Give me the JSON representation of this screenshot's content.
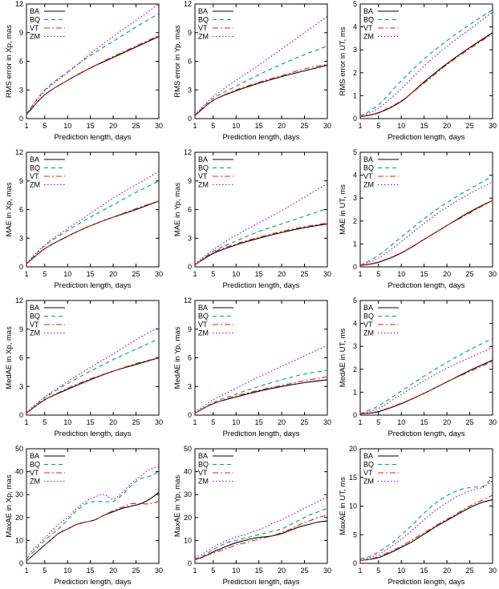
{
  "chart_data": [
    {
      "type": "line",
      "xlabel": "Prediction length, days",
      "ylabel": "RMS error in Xp, mas",
      "xlim": [
        1,
        30
      ],
      "xticks": [
        1,
        5,
        10,
        15,
        20,
        25,
        30
      ],
      "ylim": [
        0,
        12
      ],
      "yticks": [
        0,
        3,
        6,
        9,
        12
      ],
      "x": [
        1,
        5,
        10,
        15,
        20,
        25,
        30
      ],
      "legend_position": "top-left",
      "series": [
        {
          "name": "BA",
          "values": [
            0.4,
            2.5,
            4.0,
            5.3,
            6.4,
            7.5,
            8.6
          ]
        },
        {
          "name": "BQ",
          "values": [
            0.5,
            3.0,
            4.9,
            6.6,
            8.1,
            9.6,
            11.0
          ]
        },
        {
          "name": "VT",
          "values": [
            0.4,
            2.5,
            4.0,
            5.3,
            6.5,
            7.6,
            8.7
          ]
        },
        {
          "name": "ZM",
          "values": [
            0.5,
            2.9,
            4.8,
            6.8,
            8.6,
            10.3,
            12.0
          ]
        }
      ]
    },
    {
      "type": "line",
      "xlabel": "Prediction length, days",
      "ylabel": "RMS error in Yp, mas",
      "xlim": [
        1,
        30
      ],
      "xticks": [
        1,
        5,
        10,
        15,
        20,
        25,
        30
      ],
      "ylim": [
        0,
        12
      ],
      "yticks": [
        0,
        3,
        6,
        9,
        12
      ],
      "x": [
        1,
        5,
        10,
        15,
        20,
        25,
        30
      ],
      "legend_position": "top-left",
      "series": [
        {
          "name": "BA",
          "values": [
            0.3,
            1.9,
            2.9,
            3.7,
            4.4,
            5.0,
            5.6
          ]
        },
        {
          "name": "BQ",
          "values": [
            0.4,
            2.1,
            3.4,
            4.6,
            5.7,
            6.7,
            7.6
          ]
        },
        {
          "name": "VT",
          "values": [
            0.3,
            1.9,
            3.0,
            3.8,
            4.5,
            5.2,
            5.7
          ]
        },
        {
          "name": "ZM",
          "values": [
            0.4,
            2.3,
            4.0,
            5.6,
            7.3,
            9.0,
            10.7
          ]
        }
      ]
    },
    {
      "type": "line",
      "xlabel": "Prediction length, days",
      "ylabel": "RMS error in UT, ms",
      "xlim": [
        1,
        30
      ],
      "xticks": [
        1,
        5,
        10,
        15,
        20,
        25,
        30
      ],
      "ylim": [
        0,
        5
      ],
      "yticks": [
        0,
        1,
        2,
        3,
        4,
        5
      ],
      "x": [
        1,
        5,
        10,
        15,
        20,
        25,
        30
      ],
      "legend_position": "top-left",
      "series": [
        {
          "name": "BA",
          "values": [
            0.08,
            0.25,
            0.75,
            1.6,
            2.4,
            3.1,
            3.75
          ]
        },
        {
          "name": "BQ",
          "values": [
            0.1,
            0.6,
            1.65,
            2.6,
            3.4,
            4.1,
            4.75
          ]
        },
        {
          "name": "VT",
          "values": [
            0.08,
            0.27,
            0.78,
            1.55,
            2.35,
            3.05,
            3.7
          ]
        },
        {
          "name": "ZM",
          "values": [
            0.1,
            0.45,
            1.3,
            2.3,
            3.15,
            3.9,
            4.65
          ]
        }
      ]
    },
    {
      "type": "line",
      "xlabel": "Prediction length, days",
      "ylabel": "MAE in Xp, mas",
      "xlim": [
        1,
        30
      ],
      "xticks": [
        1,
        5,
        10,
        15,
        20,
        25,
        30
      ],
      "ylim": [
        0,
        12
      ],
      "yticks": [
        0,
        3,
        6,
        9,
        12
      ],
      "x": [
        1,
        5,
        10,
        15,
        20,
        25,
        30
      ],
      "legend_position": "top-left",
      "series": [
        {
          "name": "BA",
          "values": [
            0.3,
            1.9,
            3.2,
            4.3,
            5.2,
            6.0,
            6.9
          ]
        },
        {
          "name": "BQ",
          "values": [
            0.3,
            2.2,
            3.8,
            5.2,
            6.5,
            7.8,
            9.0
          ]
        },
        {
          "name": "VT",
          "values": [
            0.3,
            1.9,
            3.2,
            4.3,
            5.2,
            6.1,
            6.9
          ]
        },
        {
          "name": "ZM",
          "values": [
            0.4,
            2.3,
            4.0,
            5.6,
            7.2,
            8.6,
            10.0
          ]
        }
      ]
    },
    {
      "type": "line",
      "xlabel": "Prediction length, days",
      "ylabel": "MAE in Yp, mas",
      "xlim": [
        1,
        30
      ],
      "xticks": [
        1,
        5,
        10,
        15,
        20,
        25,
        30
      ],
      "ylim": [
        0,
        12
      ],
      "yticks": [
        0,
        3,
        6,
        9,
        12
      ],
      "x": [
        1,
        5,
        10,
        15,
        20,
        25,
        30
      ],
      "legend_position": "top-left",
      "series": [
        {
          "name": "BA",
          "values": [
            0.2,
            1.4,
            2.3,
            3.0,
            3.6,
            4.1,
            4.5
          ]
        },
        {
          "name": "BQ",
          "values": [
            0.2,
            1.6,
            2.7,
            3.7,
            4.5,
            5.3,
            6.1
          ]
        },
        {
          "name": "VT",
          "values": [
            0.2,
            1.5,
            2.4,
            3.1,
            3.7,
            4.2,
            4.6
          ]
        },
        {
          "name": "ZM",
          "values": [
            0.3,
            1.8,
            3.3,
            4.6,
            5.9,
            7.3,
            8.7
          ]
        }
      ]
    },
    {
      "type": "line",
      "xlabel": "Prediction length, days",
      "ylabel": "MAE in UT, ms",
      "xlim": [
        1,
        30
      ],
      "xticks": [
        1,
        5,
        10,
        15,
        20,
        25,
        30
      ],
      "ylim": [
        0,
        5
      ],
      "yticks": [
        0,
        1,
        2,
        3,
        4,
        5
      ],
      "x": [
        1,
        5,
        10,
        15,
        20,
        25,
        30
      ],
      "legend_position": "top-left",
      "series": [
        {
          "name": "BA",
          "values": [
            0.06,
            0.2,
            0.6,
            1.2,
            1.8,
            2.4,
            2.9
          ]
        },
        {
          "name": "BQ",
          "values": [
            0.07,
            0.5,
            1.3,
            2.1,
            2.8,
            3.4,
            3.95
          ]
        },
        {
          "name": "VT",
          "values": [
            0.06,
            0.22,
            0.62,
            1.2,
            1.8,
            2.35,
            2.9
          ]
        },
        {
          "name": "ZM",
          "values": [
            0.08,
            0.38,
            1.1,
            1.9,
            2.6,
            3.2,
            3.7
          ]
        }
      ]
    },
    {
      "type": "line",
      "xlabel": "Prediction length, days",
      "ylabel": "MedAE in Xp, mas",
      "xlim": [
        1,
        30
      ],
      "xticks": [
        1,
        5,
        10,
        15,
        20,
        25,
        30
      ],
      "ylim": [
        0,
        12
      ],
      "yticks": [
        0,
        3,
        6,
        9,
        12
      ],
      "x": [
        1,
        5,
        10,
        15,
        20,
        25,
        30
      ],
      "legend_position": "top-left",
      "series": [
        {
          "name": "BA",
          "values": [
            0.2,
            1.6,
            2.7,
            3.7,
            4.6,
            5.3,
            6.0
          ]
        },
        {
          "name": "BQ",
          "values": [
            0.2,
            1.8,
            3.3,
            4.6,
            5.8,
            6.9,
            8.0
          ]
        },
        {
          "name": "VT",
          "values": [
            0.2,
            1.6,
            2.8,
            3.8,
            4.6,
            5.4,
            6.0
          ]
        },
        {
          "name": "ZM",
          "values": [
            0.3,
            1.9,
            3.5,
            5.0,
            6.4,
            7.9,
            9.2
          ]
        }
      ]
    },
    {
      "type": "line",
      "xlabel": "Prediction length, days",
      "ylabel": "MedAE in Yp, mas",
      "xlim": [
        1,
        30
      ],
      "xticks": [
        1,
        5,
        10,
        15,
        20,
        25,
        30
      ],
      "ylim": [
        0,
        12
      ],
      "yticks": [
        0,
        3,
        6,
        9,
        12
      ],
      "x": [
        1,
        5,
        10,
        15,
        20,
        25,
        30
      ],
      "legend_position": "top-left",
      "series": [
        {
          "name": "BA",
          "values": [
            0.2,
            1.2,
            1.9,
            2.5,
            3.0,
            3.4,
            3.7
          ]
        },
        {
          "name": "BQ",
          "values": [
            0.2,
            1.3,
            2.2,
            3.0,
            3.7,
            4.3,
            4.7
          ]
        },
        {
          "name": "VT",
          "values": [
            0.2,
            1.2,
            2.0,
            2.6,
            3.1,
            3.6,
            4.0
          ]
        },
        {
          "name": "ZM",
          "values": [
            0.3,
            1.6,
            2.8,
            4.0,
            5.1,
            6.2,
            7.3
          ]
        }
      ]
    },
    {
      "type": "line",
      "xlabel": "Prediction length, days",
      "ylabel": "MedAE in UT, ms",
      "xlim": [
        1,
        30
      ],
      "xticks": [
        1,
        5,
        10,
        15,
        20,
        25,
        30
      ],
      "ylim": [
        0,
        5
      ],
      "yticks": [
        0,
        1,
        2,
        3,
        4,
        5
      ],
      "x": [
        1,
        5,
        10,
        15,
        20,
        25,
        30
      ],
      "legend_position": "top-left",
      "series": [
        {
          "name": "BA",
          "values": [
            0.05,
            0.15,
            0.5,
            0.95,
            1.45,
            1.95,
            2.4
          ]
        },
        {
          "name": "BQ",
          "values": [
            0.06,
            0.4,
            1.05,
            1.7,
            2.3,
            2.85,
            3.35
          ]
        },
        {
          "name": "VT",
          "values": [
            0.05,
            0.17,
            0.52,
            0.95,
            1.45,
            1.9,
            2.35
          ]
        },
        {
          "name": "ZM",
          "values": [
            0.06,
            0.3,
            0.9,
            1.5,
            2.05,
            2.5,
            2.95
          ]
        }
      ]
    },
    {
      "type": "line",
      "xlabel": "Prediction length, days",
      "ylabel": "MaxAE in Xp, mas",
      "xlim": [
        1,
        30
      ],
      "xticks": [
        1,
        5,
        10,
        15,
        20,
        25,
        30
      ],
      "ylim": [
        0,
        50
      ],
      "yticks": [
        0,
        10,
        20,
        30,
        40,
        50
      ],
      "x": [
        1,
        3,
        5,
        8,
        10,
        12,
        14,
        16,
        18,
        20,
        22,
        24,
        26,
        28,
        30
      ],
      "legend_position": "top-left",
      "series": [
        {
          "name": "BA",
          "values": [
            1,
            4.5,
            8,
            13,
            15,
            17,
            18,
            19,
            21,
            22.5,
            24,
            25,
            26,
            28,
            31
          ]
        },
        {
          "name": "BQ",
          "values": [
            2,
            6,
            10,
            15,
            19,
            23,
            26,
            27,
            27,
            27,
            30,
            34,
            37,
            38,
            40
          ]
        },
        {
          "name": "VT",
          "values": [
            1,
            4.5,
            8,
            13,
            15,
            17,
            18,
            19,
            21,
            23,
            24.5,
            26,
            26,
            26,
            27
          ]
        },
        {
          "name": "ZM",
          "values": [
            3,
            7,
            11,
            17,
            20,
            24,
            27,
            29,
            30,
            28,
            31,
            35,
            38,
            41,
            42
          ]
        }
      ]
    },
    {
      "type": "line",
      "xlabel": "Prediction length, days",
      "ylabel": "MaxAE in Yp, mas",
      "xlim": [
        1,
        30
      ],
      "xticks": [
        1,
        5,
        10,
        15,
        20,
        25,
        30
      ],
      "ylim": [
        0,
        50
      ],
      "yticks": [
        0,
        10,
        20,
        30,
        40,
        50
      ],
      "x": [
        1,
        3,
        5,
        8,
        10,
        12,
        14,
        16,
        18,
        20,
        22,
        24,
        26,
        28,
        30
      ],
      "legend_position": "top-left",
      "series": [
        {
          "name": "BA",
          "values": [
            1.5,
            3,
            5,
            7.5,
            9,
            10,
            11,
            11.5,
            12,
            13,
            14.5,
            16,
            17,
            18,
            18.5
          ]
        },
        {
          "name": "BQ",
          "values": [
            2,
            3.5,
            6,
            9,
            10,
            11,
            12,
            13,
            14,
            15,
            17,
            19,
            21,
            22.5,
            24
          ]
        },
        {
          "name": "VT",
          "values": [
            1.5,
            3,
            4.5,
            6.5,
            8,
            9,
            10,
            11,
            12,
            13.5,
            15,
            17,
            18.5,
            20,
            21
          ]
        },
        {
          "name": "ZM",
          "values": [
            2.5,
            4.5,
            7,
            10,
            11.5,
            12.5,
            14,
            15.5,
            17.5,
            19,
            21,
            23,
            25,
            27,
            29
          ]
        }
      ]
    },
    {
      "type": "line",
      "xlabel": "Prediction length, days",
      "ylabel": "MaxAE in UT, ms",
      "xlim": [
        1,
        30
      ],
      "xticks": [
        1,
        5,
        10,
        15,
        20,
        25,
        30
      ],
      "ylim": [
        0,
        20
      ],
      "yticks": [
        0,
        5,
        10,
        15,
        20
      ],
      "x": [
        1,
        3,
        5,
        8,
        10,
        12,
        14,
        16,
        18,
        20,
        22,
        24,
        26,
        28,
        30
      ],
      "legend_position": "top-left",
      "series": [
        {
          "name": "BA",
          "values": [
            0.5,
            0.7,
            1.0,
            2.0,
            2.8,
            3.6,
            4.6,
            5.6,
            6.6,
            7.5,
            8.4,
            9.3,
            10.1,
            10.7,
            11.1
          ]
        },
        {
          "name": "BQ",
          "values": [
            0.8,
            1.2,
            2.0,
            3.6,
            5.0,
            6.4,
            8.0,
            9.5,
            10.8,
            11.8,
            12.6,
            13.1,
            13.3,
            13.5,
            15.0
          ]
        },
        {
          "name": "VT",
          "values": [
            0.5,
            0.7,
            1.2,
            2.2,
            3.0,
            3.9,
            4.9,
            5.8,
            6.8,
            7.7,
            8.6,
            9.6,
            10.4,
            11.1,
            11.9
          ]
        },
        {
          "name": "ZM",
          "values": [
            0.7,
            1.0,
            1.6,
            3.0,
            4.2,
            5.5,
            6.9,
            8.3,
            9.5,
            10.6,
            11.6,
            12.3,
            12.9,
            13.3,
            14.5
          ]
        }
      ]
    }
  ],
  "series_style": {
    "BA": {
      "color": "#000000",
      "dash": ""
    },
    "BQ": {
      "color": "#009e73",
      "dash": "5,4"
    },
    "VT": {
      "color": "#e51e10",
      "dash": "7,3,2,3"
    },
    "ZM": {
      "color": "#9400d3",
      "dash": "1.5,2.5"
    }
  }
}
